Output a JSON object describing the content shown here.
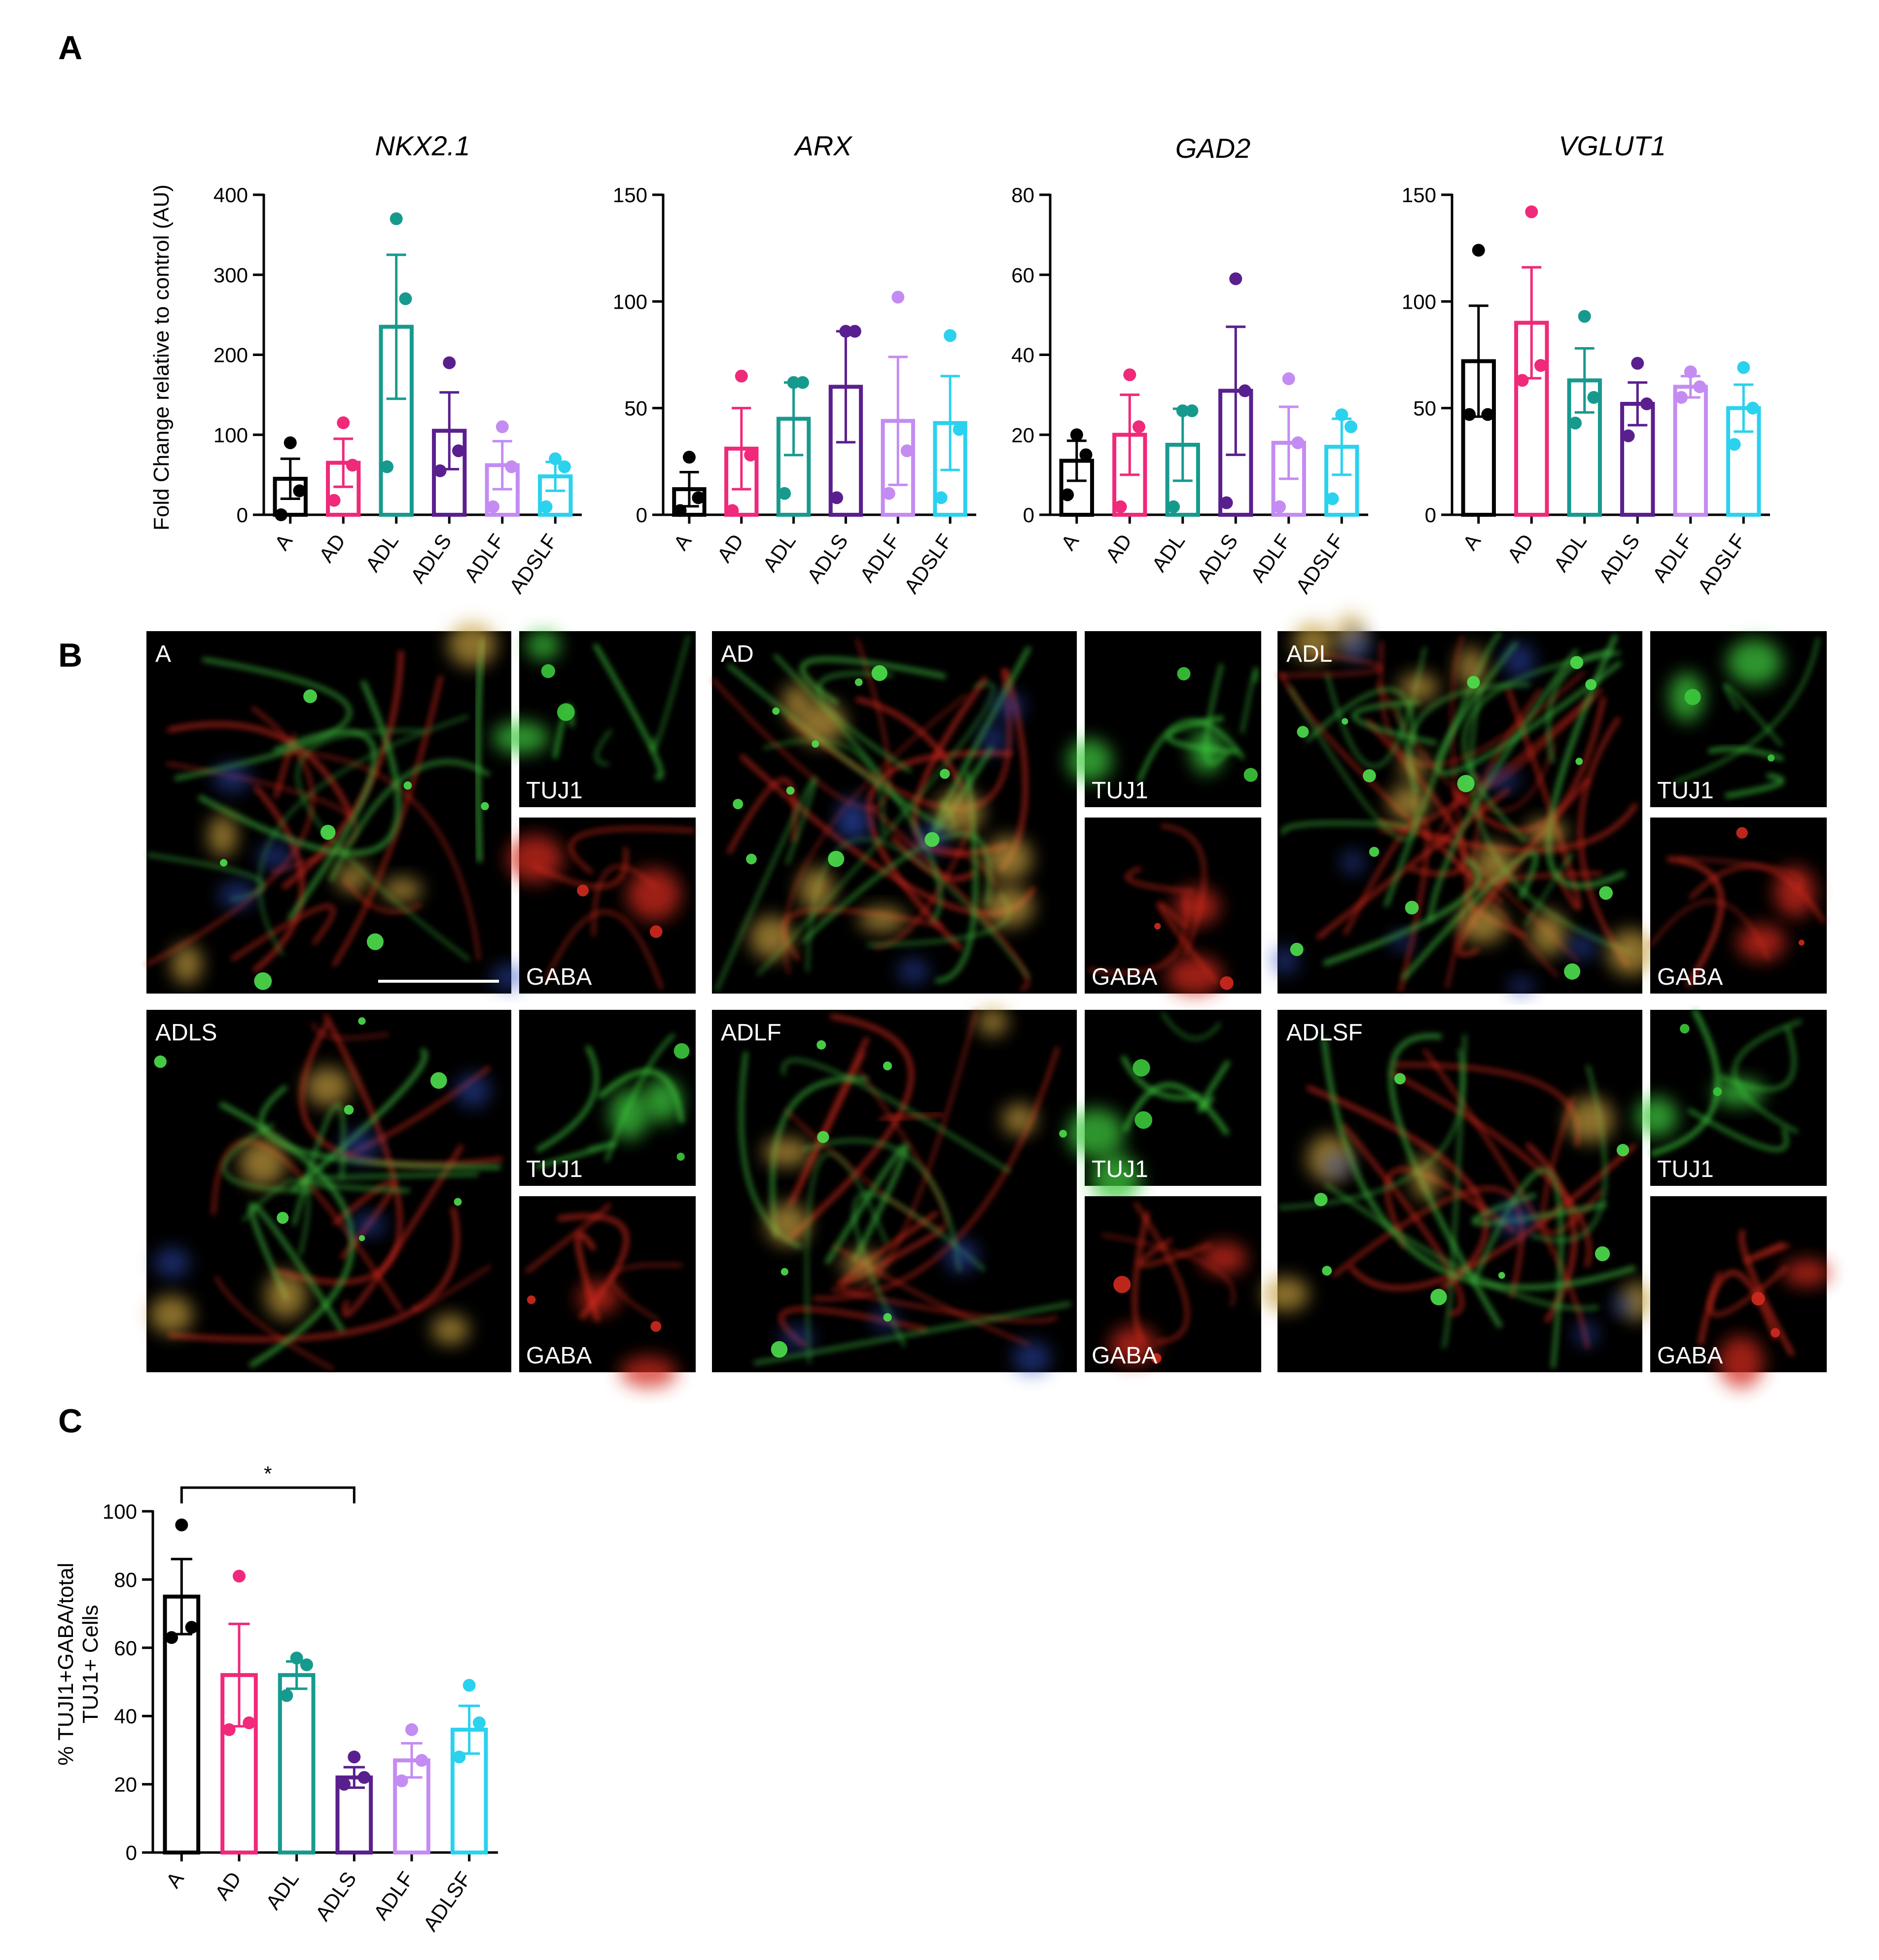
{
  "panels": {
    "a": "A",
    "b": "B",
    "c": "C"
  },
  "colors": {
    "A": "#000000",
    "AD": "#f0297a",
    "ADL": "#179a8e",
    "ADLS": "#5a1f8e",
    "ADLF": "#c48cf2",
    "ADSLF": "#2ad2ee"
  },
  "panel_a_ylabel": "Fold Change relative to control  (AU)",
  "chart_data": [
    {
      "type": "bar",
      "title": "NKX2.1",
      "categories": [
        "A",
        "AD",
        "ADL",
        "ADLS",
        "ADLF",
        "ADSLF"
      ],
      "values": [
        45,
        65,
        235,
        105,
        62,
        48
      ],
      "error": [
        25,
        30,
        90,
        48,
        30,
        18
      ],
      "points": [
        [
          0,
          30,
          90
        ],
        [
          18,
          62,
          115
        ],
        [
          60,
          270,
          370
        ],
        [
          55,
          80,
          190
        ],
        [
          10,
          60,
          110
        ],
        [
          10,
          60,
          70
        ]
      ],
      "ylim": [
        0,
        400
      ],
      "yticks": [
        0,
        100,
        200,
        300,
        400
      ]
    },
    {
      "type": "bar",
      "title": "ARX",
      "categories": [
        "A",
        "AD",
        "ADL",
        "ADLS",
        "ADLF",
        "ADSLF"
      ],
      "values": [
        12,
        31,
        45,
        60,
        44,
        43
      ],
      "error": [
        8,
        19,
        17,
        26,
        30,
        22
      ],
      "points": [
        [
          2,
          8,
          27
        ],
        [
          2,
          28,
          65
        ],
        [
          10,
          62,
          62
        ],
        [
          8,
          86,
          86
        ],
        [
          10,
          30,
          102
        ],
        [
          8,
          40,
          84
        ]
      ],
      "ylim": [
        0,
        150
      ],
      "yticks": [
        0,
        50,
        100,
        150
      ]
    },
    {
      "type": "bar",
      "title": "GAD2",
      "categories": [
        "A",
        "AD",
        "ADL",
        "ADLS",
        "ADLF",
        "ADSLF"
      ],
      "values": [
        13.5,
        20,
        17.5,
        31,
        18,
        17
      ],
      "error": [
        5,
        10,
        9,
        16,
        9,
        7
      ],
      "points": [
        [
          5,
          15,
          20
        ],
        [
          2,
          22,
          35
        ],
        [
          2,
          26,
          26
        ],
        [
          3,
          31,
          59
        ],
        [
          2,
          18,
          34
        ],
        [
          4,
          22,
          25
        ]
      ],
      "ylim": [
        0,
        80
      ],
      "yticks": [
        0,
        20,
        40,
        60,
        80
      ]
    },
    {
      "type": "bar",
      "title": "VGLUT1",
      "categories": [
        "A",
        "AD",
        "ADL",
        "ADLS",
        "ADLF",
        "ADSLF"
      ],
      "values": [
        72,
        90,
        63,
        52,
        60,
        50
      ],
      "error": [
        26,
        26,
        15,
        10,
        5,
        11
      ],
      "points": [
        [
          47,
          47,
          124
        ],
        [
          63,
          70,
          142
        ],
        [
          43,
          55,
          93
        ],
        [
          37,
          52,
          71
        ],
        [
          55,
          60,
          67
        ],
        [
          33,
          50,
          69
        ]
      ],
      "ylim": [
        0,
        150
      ],
      "yticks": [
        0,
        50,
        100,
        150
      ]
    },
    {
      "type": "bar",
      "categories": [
        "A",
        "AD",
        "ADL",
        "ADLS",
        "ADLF",
        "ADLSF"
      ],
      "values": [
        75,
        52,
        52,
        22,
        27,
        36
      ],
      "error": [
        11,
        15,
        4,
        3,
        5,
        7
      ],
      "points": [
        [
          63,
          66,
          96
        ],
        [
          36,
          38,
          81
        ],
        [
          46,
          55,
          57
        ],
        [
          20,
          22,
          28
        ],
        [
          21,
          27,
          36
        ],
        [
          28,
          38,
          49
        ]
      ],
      "ylim": [
        0,
        100
      ],
      "yticks": [
        0,
        20,
        40,
        60,
        80,
        100
      ],
      "ylabel": [
        "% TUJI1+GABA/total",
        "TUJ1+ Cells"
      ],
      "significance": {
        "from": "A",
        "to": "ADLS",
        "label": "*"
      }
    }
  ],
  "micrographs": [
    {
      "label": "A",
      "tuj": "TUJ1",
      "gaba": "GABA"
    },
    {
      "label": "AD",
      "tuj": "TUJ1",
      "gaba": "GABA"
    },
    {
      "label": "ADL",
      "tuj": "TUJ1",
      "gaba": "GABA"
    },
    {
      "label": "ADLS",
      "tuj": "TUJ1",
      "gaba": "GABA"
    },
    {
      "label": "ADLF",
      "tuj": "TUJ1",
      "gaba": "GABA"
    },
    {
      "label": "ADLSF",
      "tuj": "TUJ1",
      "gaba": "GABA"
    }
  ]
}
